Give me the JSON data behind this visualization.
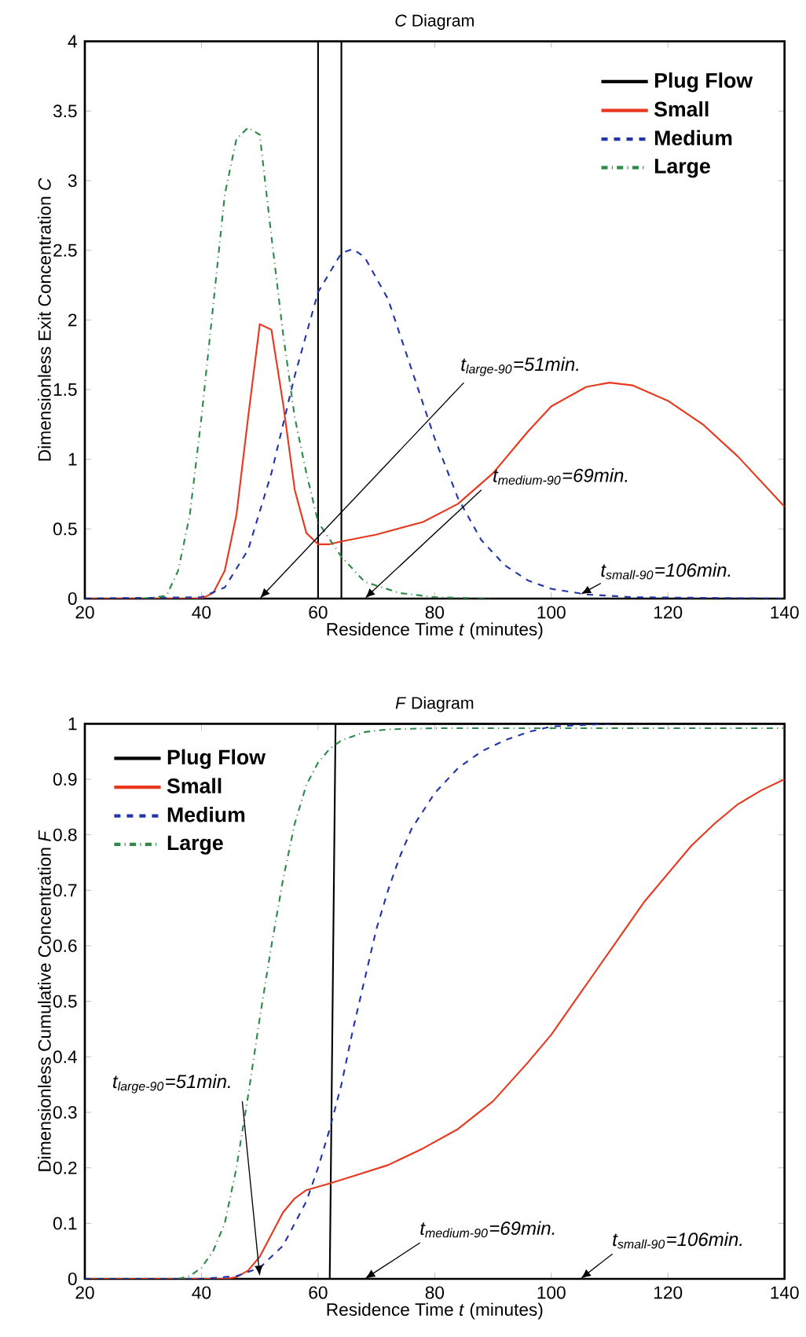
{
  "chart_data": [
    {
      "type": "line",
      "title": "*C* Diagram",
      "xlabel": "Residence Time *t* (minutes)",
      "ylabel": "Dimensionless Exit Concentration *C*",
      "xlim": [
        20,
        140
      ],
      "ylim": [
        0,
        4
      ],
      "xticks": [
        20,
        40,
        60,
        80,
        100,
        120,
        140
      ],
      "yticks": [
        0,
        0.5,
        1,
        1.5,
        2,
        2.5,
        3,
        3.5,
        4
      ],
      "legend": "top right",
      "series": [
        {
          "name": "Plug Flow",
          "color": "#000000",
          "line_style": "solid",
          "x": [
            20,
            60,
            60,
            64,
            64,
            140
          ],
          "values": [
            0,
            0,
            4,
            4,
            0,
            0
          ]
        },
        {
          "name": "Small",
          "color": "#e8391f",
          "line_style": "solid",
          "x": [
            20,
            40,
            42,
            44,
            46,
            48,
            50,
            52,
            54,
            56,
            58,
            60,
            62,
            64,
            70,
            78,
            84,
            90,
            96,
            100,
            106,
            110,
            114,
            120,
            126,
            132,
            140
          ],
          "values": [
            0,
            0,
            0.04,
            0.2,
            0.6,
            1.3,
            1.97,
            1.93,
            1.4,
            0.78,
            0.47,
            0.39,
            0.39,
            0.41,
            0.46,
            0.55,
            0.68,
            0.9,
            1.2,
            1.38,
            1.52,
            1.55,
            1.53,
            1.42,
            1.25,
            1.02,
            0.66
          ]
        },
        {
          "name": "Medium",
          "color": "#2236a8",
          "line_style": "dashed",
          "x": [
            20,
            40,
            44,
            48,
            52,
            56,
            60,
            64,
            66,
            68,
            72,
            76,
            80,
            84,
            88,
            92,
            96,
            100,
            106,
            114,
            140
          ],
          "values": [
            0,
            0.01,
            0.08,
            0.35,
            0.9,
            1.6,
            2.2,
            2.48,
            2.51,
            2.45,
            2.15,
            1.65,
            1.15,
            0.72,
            0.42,
            0.24,
            0.13,
            0.07,
            0.03,
            0.01,
            0
          ]
        },
        {
          "name": "Large",
          "color": "#2f8a4a",
          "line_style": "dashdot",
          "x": [
            30,
            34,
            36,
            38,
            40,
            42,
            44,
            46,
            48,
            50,
            52,
            54,
            56,
            58,
            60,
            64,
            68,
            74,
            80,
            90
          ],
          "values": [
            0,
            0.02,
            0.2,
            0.6,
            1.3,
            2.1,
            2.9,
            3.3,
            3.38,
            3.33,
            2.6,
            1.9,
            1.3,
            0.9,
            0.55,
            0.3,
            0.12,
            0.04,
            0.01,
            0
          ]
        }
      ],
      "annotations": [
        {
          "text": "t$_{large-90}$=51min.",
          "x": 50,
          "y": 0
        },
        {
          "text": "t$_{medium-90}$=69min.",
          "x": 68,
          "y": 0
        },
        {
          "text": "t$_{small-90}$=106min.",
          "x": 105,
          "y": 0.03
        }
      ]
    },
    {
      "type": "line",
      "title": "*F* Diagram",
      "xlabel": "Residence Time *t* (minutes)",
      "ylabel": "Dimensionless Cumulative Concentration *F*",
      "xlim": [
        20,
        140
      ],
      "ylim": [
        0,
        1
      ],
      "xticks": [
        20,
        40,
        60,
        80,
        100,
        120,
        140
      ],
      "yticks": [
        0,
        0.1,
        0.2,
        0.3,
        0.4,
        0.5,
        0.6,
        0.7,
        0.8,
        0.9,
        1
      ],
      "legend": "top left",
      "series": [
        {
          "name": "Plug Flow",
          "color": "#000000",
          "line_style": "solid",
          "x": [
            20,
            62,
            63,
            140
          ],
          "values": [
            0,
            0,
            1,
            1
          ]
        },
        {
          "name": "Small",
          "color": "#e8391f",
          "line_style": "solid",
          "x": [
            20,
            44,
            46,
            48,
            50,
            52,
            54,
            56,
            58,
            62,
            66,
            72,
            78,
            84,
            90,
            96,
            100,
            104,
            108,
            112,
            116,
            120,
            124,
            128,
            132,
            136,
            140
          ],
          "values": [
            0,
            0,
            0.003,
            0.015,
            0.04,
            0.08,
            0.12,
            0.145,
            0.16,
            0.172,
            0.185,
            0.205,
            0.235,
            0.27,
            0.32,
            0.39,
            0.44,
            0.5,
            0.56,
            0.62,
            0.68,
            0.73,
            0.78,
            0.82,
            0.855,
            0.88,
            0.9
          ]
        },
        {
          "name": "Medium",
          "color": "#2236a8",
          "line_style": "dashed",
          "x": [
            20,
            40,
            46,
            50,
            54,
            58,
            60,
            62,
            64,
            66,
            68,
            70,
            72,
            74,
            76,
            80,
            84,
            88,
            92,
            96,
            100,
            110
          ],
          "values": [
            0,
            0,
            0.005,
            0.02,
            0.06,
            0.14,
            0.2,
            0.27,
            0.35,
            0.45,
            0.54,
            0.63,
            0.7,
            0.76,
            0.81,
            0.875,
            0.92,
            0.95,
            0.97,
            0.985,
            0.995,
            1
          ]
        },
        {
          "name": "Large",
          "color": "#2f8a4a",
          "line_style": "dashdot",
          "x": [
            36,
            38,
            40,
            42,
            44,
            46,
            48,
            50,
            52,
            54,
            56,
            58,
            60,
            62,
            64,
            68,
            72,
            80,
            140
          ],
          "values": [
            0,
            0.005,
            0.02,
            0.05,
            0.1,
            0.2,
            0.33,
            0.47,
            0.6,
            0.72,
            0.82,
            0.89,
            0.93,
            0.955,
            0.97,
            0.985,
            0.99,
            0.992,
            0.992
          ]
        }
      ],
      "annotations": [
        {
          "text": "t$_{large-90}$=51min.",
          "x": 50,
          "y": 0.005
        },
        "t$_{medium-90}$=69min.",
        "t$_{small-90}$=106min."
      ]
    }
  ]
}
